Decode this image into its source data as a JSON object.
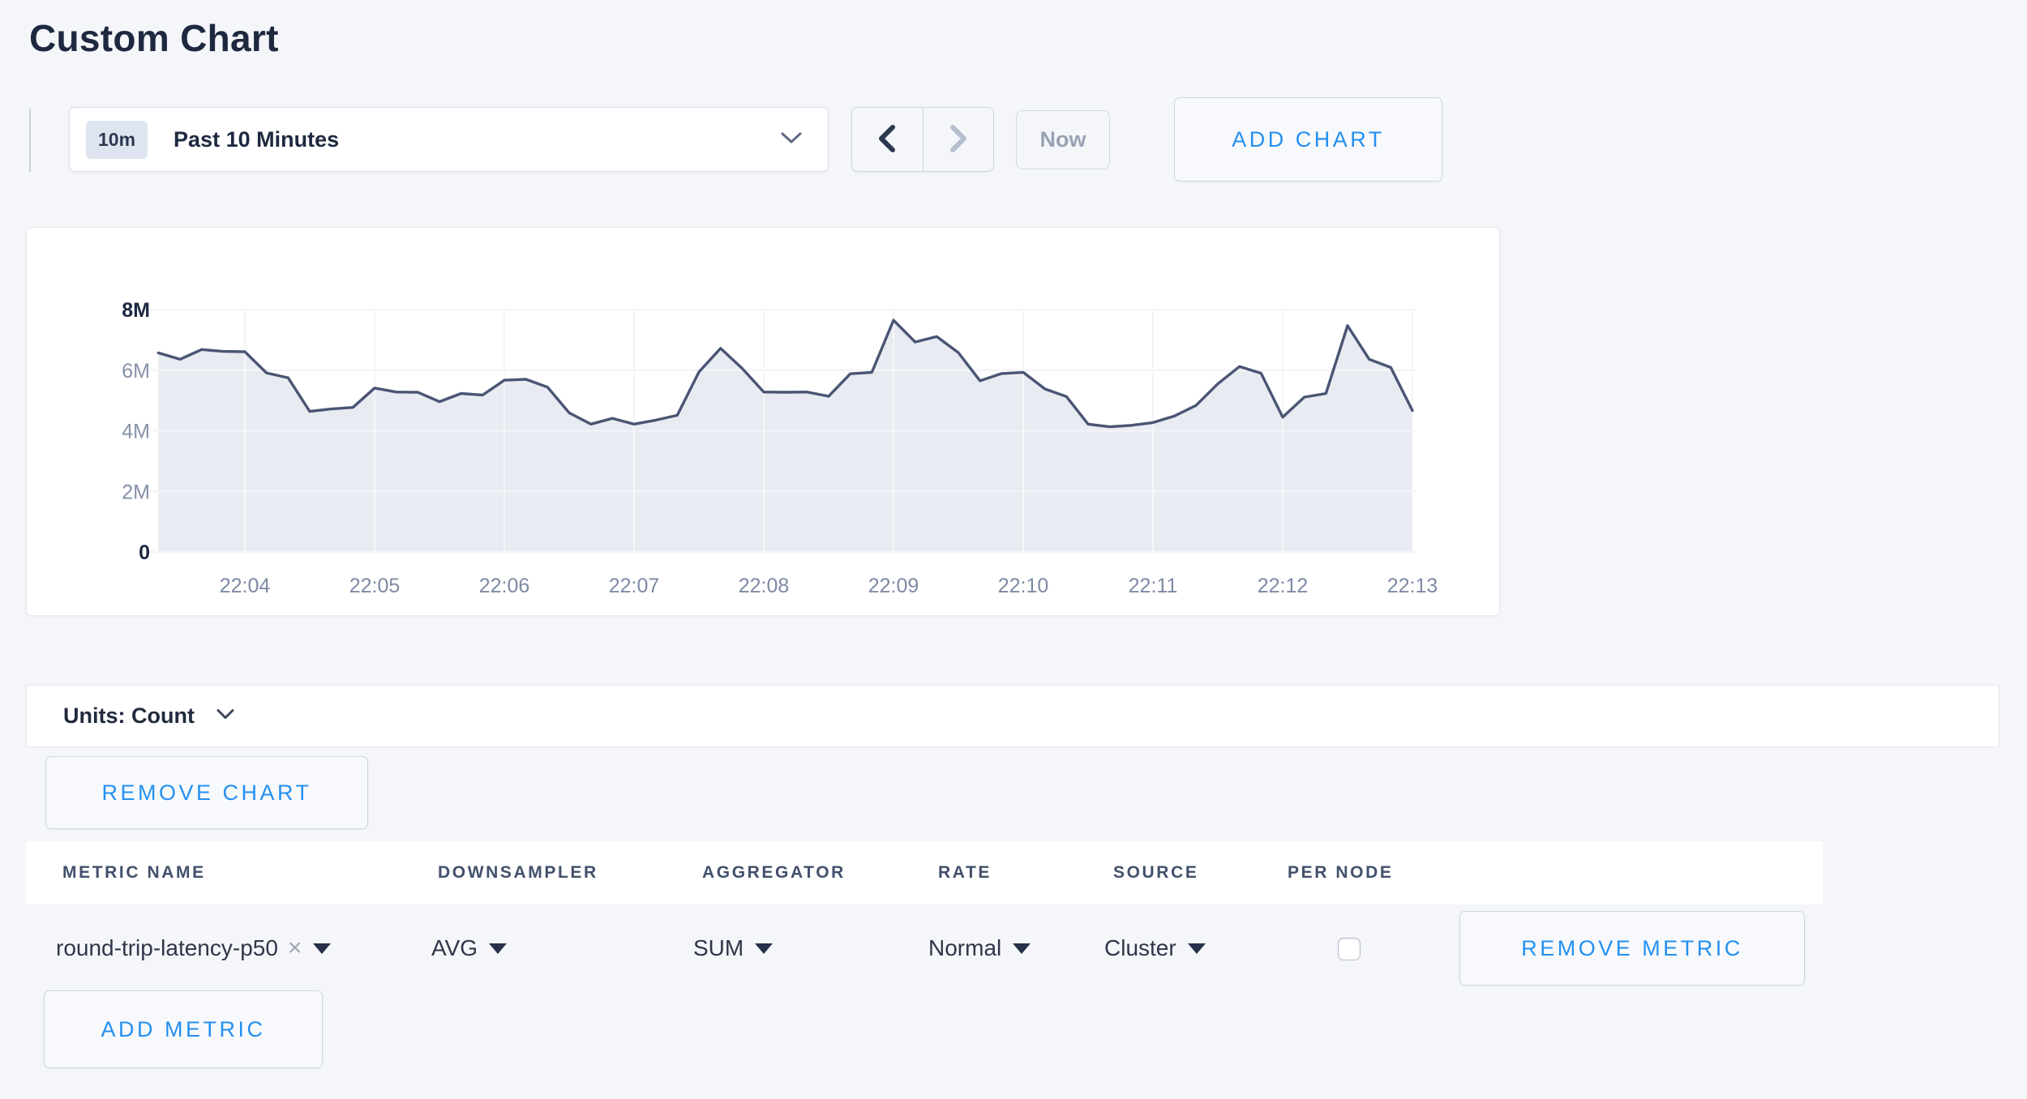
{
  "page": {
    "title": "Custom Chart",
    "background": "#f4f6fa",
    "accent_blue": "#2490f0"
  },
  "toolbar": {
    "time_badge": "10m",
    "time_label": "Past 10 Minutes",
    "now_label": "Now",
    "add_chart_label": "ADD CHART"
  },
  "chart_controls": {
    "units_label": "Units: Count",
    "remove_chart_label": "REMOVE CHART"
  },
  "metrics_table": {
    "headers": [
      "METRIC NAME",
      "DOWNSAMPLER",
      "AGGREGATOR",
      "RATE",
      "SOURCE",
      "PER NODE"
    ],
    "rows": [
      {
        "metric_name": "round-trip-latency-p50",
        "downsampler": "AVG",
        "aggregator": "SUM",
        "rate": "Normal",
        "source": "Cluster",
        "per_node_checked": false,
        "remove_label": "REMOVE METRIC"
      }
    ],
    "add_metric_label": "ADD METRIC"
  },
  "chart_data": {
    "type": "area",
    "title": "",
    "xlabel": "",
    "ylabel": "",
    "x_ticks": [
      "22:04",
      "22:05",
      "22:06",
      "22:07",
      "22:08",
      "22:09",
      "22:10",
      "22:11",
      "22:12",
      "22:13"
    ],
    "y_ticks": [
      "0",
      "2M",
      "4M",
      "6M",
      "8M"
    ],
    "ylim_millions": [
      0,
      8
    ],
    "grid": true,
    "legend": "none",
    "line_color": "#4a5574",
    "fill_color": "#e9ebf2",
    "gridline_color": "#e3e7f0",
    "series": [
      {
        "name": "round-trip-latency-p50",
        "start_time": "22:03:20",
        "interval_seconds": 10,
        "values_millions": [
          6.57,
          6.36,
          6.68,
          6.62,
          6.61,
          5.91,
          5.75,
          4.64,
          4.72,
          4.77,
          5.41,
          5.28,
          5.27,
          4.96,
          5.23,
          5.18,
          5.67,
          5.7,
          5.44,
          4.59,
          4.22,
          4.41,
          4.22,
          4.35,
          4.51,
          5.94,
          6.72,
          6.06,
          5.28,
          5.27,
          5.28,
          5.14,
          5.88,
          5.93,
          7.65,
          6.93,
          7.11,
          6.58,
          5.65,
          5.89,
          5.93,
          5.38,
          5.13,
          4.22,
          4.13,
          4.18,
          4.27,
          4.49,
          4.84,
          5.55,
          6.12,
          5.9,
          4.45,
          5.11,
          5.23,
          7.47,
          6.36,
          6.09,
          4.67
        ]
      }
    ]
  }
}
